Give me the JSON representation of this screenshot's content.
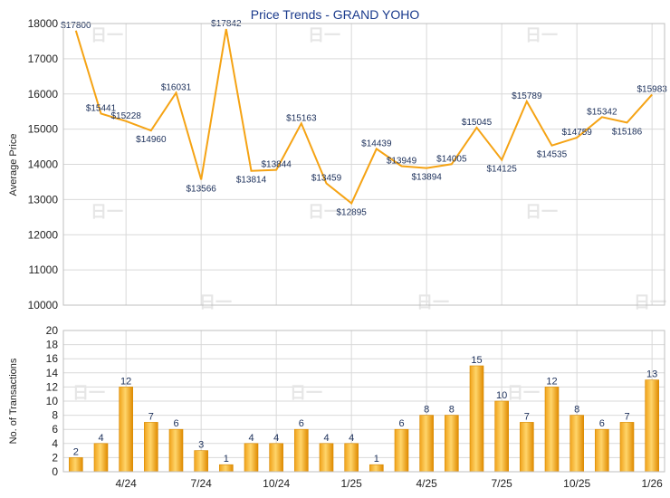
{
  "chart_data": [
    {
      "type": "line",
      "title": "Price Trends - GRAND YOHO",
      "ylabel": "Average Price",
      "ylim": [
        10000,
        18000
      ],
      "yticks": [
        "10000",
        "11000",
        "12000",
        "13000",
        "14000",
        "15000",
        "16000",
        "17000",
        "18000"
      ],
      "xtick_labels": [
        "4/24",
        "7/24",
        "10/24",
        "1/25",
        "4/25",
        "7/25",
        "10/25",
        "1/26"
      ],
      "color": "#f5a314",
      "values": [
        17800,
        15441,
        15228,
        14960,
        16031,
        13566,
        17842,
        13814,
        13844,
        15163,
        13459,
        12895,
        14439,
        13949,
        13894,
        14005,
        15045,
        14125,
        15789,
        14535,
        14759,
        15342,
        15186,
        15983
      ],
      "labels": [
        "$17800",
        "$15441",
        "$15228",
        "$14960",
        "$16031",
        "$13566",
        "$17842",
        "$13814",
        "$13844",
        "$15163",
        "$13459",
        "$12895",
        "$14439",
        "$13949",
        "$13894",
        "$14005",
        "$15045",
        "$14125",
        "$15789",
        "$14535",
        "$14759",
        "$15342",
        "$15186",
        "$15983"
      ]
    },
    {
      "type": "bar",
      "ylabel": "No. of Transactions",
      "ylim": [
        0,
        20
      ],
      "yticks": [
        "0",
        "2",
        "4",
        "6",
        "8",
        "10",
        "12",
        "14",
        "16",
        "18",
        "20"
      ],
      "xtick_labels": [
        "4/24",
        "7/24",
        "10/24",
        "1/25",
        "4/25",
        "7/25",
        "10/25",
        "1/26"
      ],
      "color": "#f5a314",
      "values": [
        2,
        4,
        12,
        7,
        6,
        3,
        1,
        4,
        4,
        6,
        4,
        4,
        1,
        6,
        8,
        8,
        15,
        10,
        7,
        12,
        8,
        6,
        7,
        13
      ]
    }
  ],
  "watermark": "日一"
}
